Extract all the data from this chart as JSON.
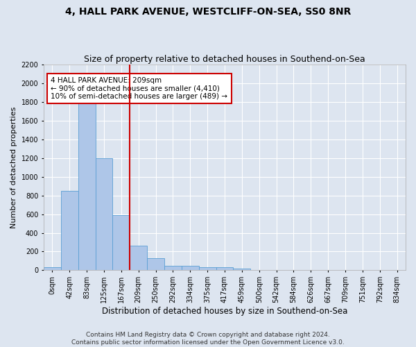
{
  "title_line1": "4, HALL PARK AVENUE, WESTCLIFF-ON-SEA, SS0 8NR",
  "title_line2": "Size of property relative to detached houses in Southend-on-Sea",
  "xlabel": "Distribution of detached houses by size in Southend-on-Sea",
  "ylabel": "Number of detached properties",
  "footnote": "Contains HM Land Registry data © Crown copyright and database right 2024.\nContains public sector information licensed under the Open Government Licence v3.0.",
  "bar_labels": [
    "0sqm",
    "42sqm",
    "83sqm",
    "125sqm",
    "167sqm",
    "209sqm",
    "250sqm",
    "292sqm",
    "334sqm",
    "375sqm",
    "417sqm",
    "459sqm",
    "500sqm",
    "542sqm",
    "584sqm",
    "626sqm",
    "667sqm",
    "709sqm",
    "751sqm",
    "792sqm",
    "834sqm"
  ],
  "bar_values": [
    30,
    848,
    1800,
    1200,
    590,
    260,
    130,
    50,
    50,
    35,
    30,
    15,
    0,
    0,
    0,
    0,
    0,
    0,
    0,
    0,
    0
  ],
  "bar_color": "#aec6e8",
  "bar_edge_color": "#5a9fd4",
  "vline_x_index": 5,
  "vline_color": "#cc0000",
  "annotation_text": "4 HALL PARK AVENUE: 209sqm\n← 90% of detached houses are smaller (4,410)\n10% of semi-detached houses are larger (489) →",
  "annotation_box_color": "#ffffff",
  "annotation_box_edge_color": "#cc0000",
  "ylim": [
    0,
    2200
  ],
  "yticks": [
    0,
    200,
    400,
    600,
    800,
    1000,
    1200,
    1400,
    1600,
    1800,
    2000,
    2200
  ],
  "background_color": "#dde5f0",
  "plot_bg_color": "#dde5f0",
  "grid_color": "#ffffff",
  "title1_fontsize": 10,
  "title2_fontsize": 9,
  "xlabel_fontsize": 8.5,
  "ylabel_fontsize": 8,
  "tick_fontsize": 7,
  "footnote_fontsize": 6.5,
  "annotation_fontsize": 7.5
}
